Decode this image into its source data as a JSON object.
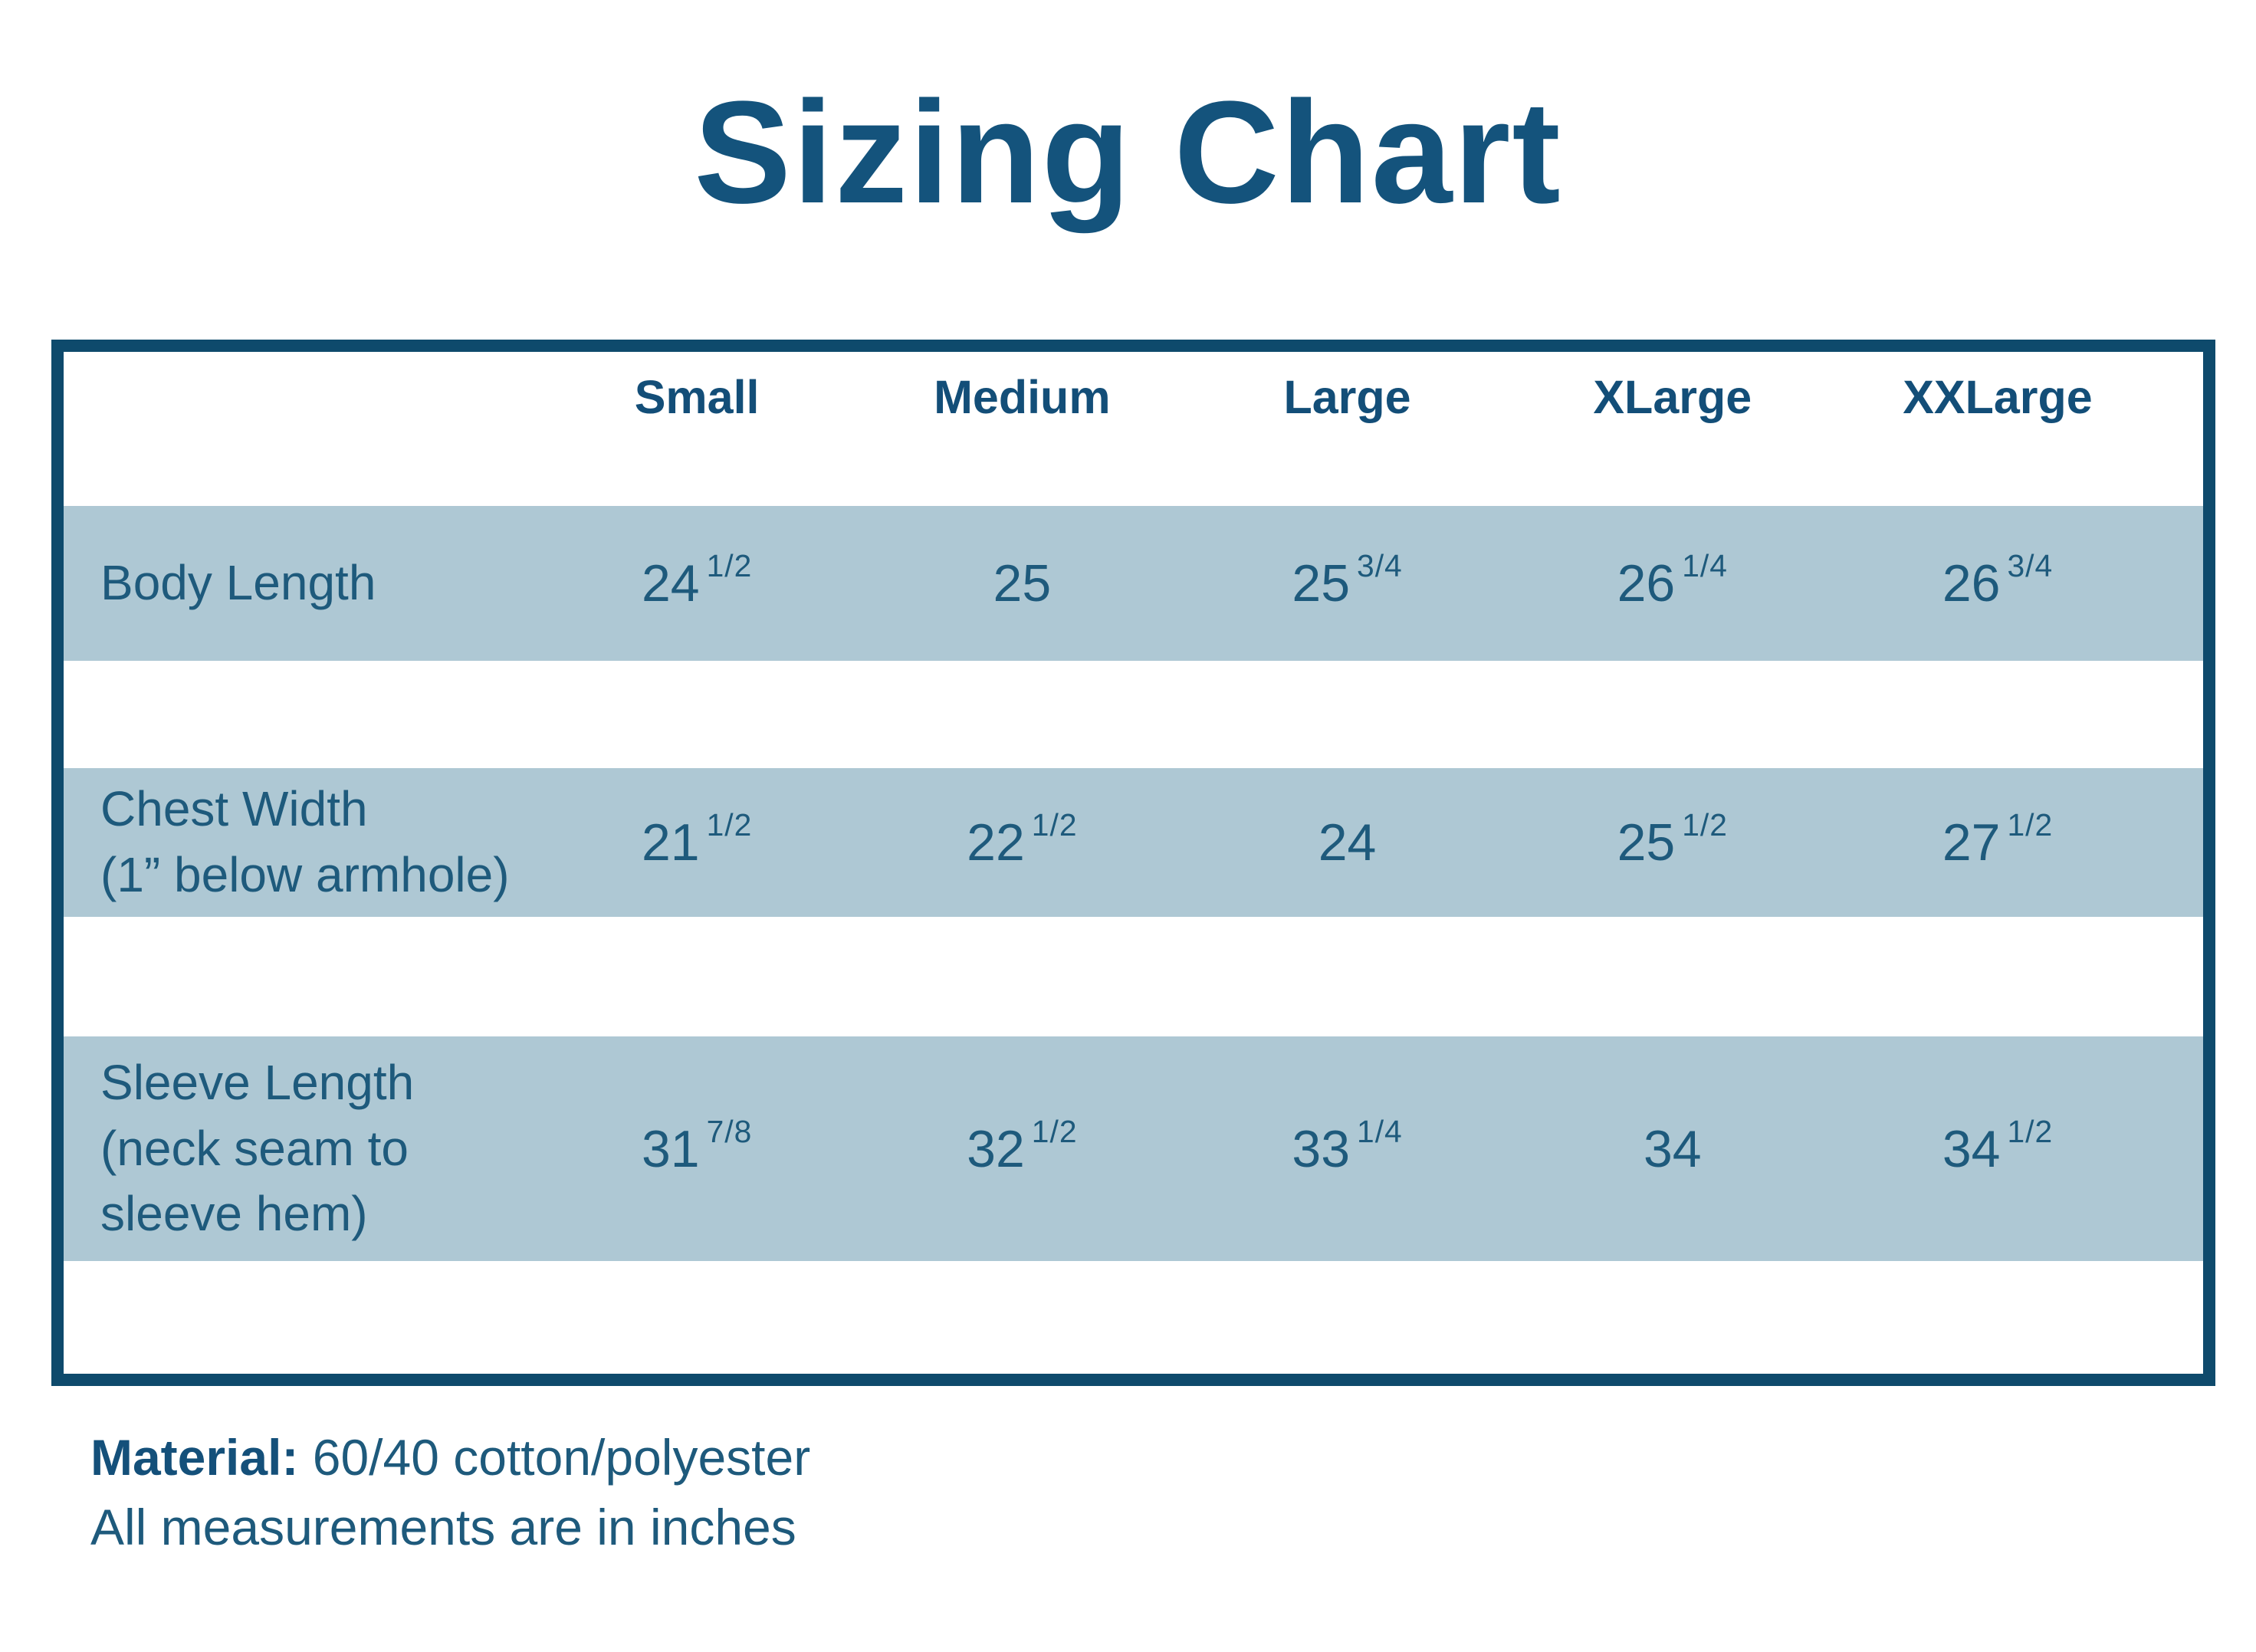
{
  "title": "Sizing Chart",
  "colors": {
    "accent_border": "#0e4a6c",
    "band": "#aec8d4",
    "text": "#1e5a7c",
    "heading_text": "#14537c"
  },
  "table": {
    "columns": [
      "Small",
      "Medium",
      "Large",
      "XLarge",
      "XXLarge"
    ],
    "rows": [
      {
        "label": "Body Length",
        "values": [
          {
            "w": "24",
            "f": "1/2"
          },
          {
            "w": "25",
            "f": ""
          },
          {
            "w": "25",
            "f": "3/4"
          },
          {
            "w": "26",
            "f": "1/4"
          },
          {
            "w": "26",
            "f": "3/4"
          }
        ]
      },
      {
        "label": "Chest Width\n(1” below armhole)",
        "values": [
          {
            "w": "21",
            "f": "1/2"
          },
          {
            "w": "22",
            "f": "1/2"
          },
          {
            "w": "24",
            "f": ""
          },
          {
            "w": "25",
            "f": "1/2"
          },
          {
            "w": "27",
            "f": "1/2"
          }
        ]
      },
      {
        "label": "Sleeve Length\n(neck seam to\nsleeve hem)",
        "values": [
          {
            "w": "31",
            "f": "7/8"
          },
          {
            "w": "32",
            "f": "1/2"
          },
          {
            "w": "33",
            "f": "1/4"
          },
          {
            "w": "34",
            "f": ""
          },
          {
            "w": "34",
            "f": "1/2"
          }
        ]
      }
    ]
  },
  "footer": {
    "material_label": "Material:",
    "material_value": " 60/40 cotton/polyester",
    "note": "All measurements are in inches"
  },
  "chart_data": {
    "type": "table",
    "title": "Sizing Chart",
    "columns": [
      "Small",
      "Medium",
      "Large",
      "XLarge",
      "XXLarge"
    ],
    "row_labels": [
      "Body Length",
      "Chest Width (1” below armhole)",
      "Sleeve Length (neck seam to sleeve hem)"
    ],
    "values_inches": [
      [
        24.5,
        25,
        25.75,
        26.25,
        26.75
      ],
      [
        21.5,
        22.5,
        24,
        25.5,
        27.5
      ],
      [
        31.875,
        32.5,
        33.25,
        34,
        34.5
      ]
    ],
    "notes": [
      "Material: 60/40 cotton/polyester",
      "All measurements are in inches"
    ]
  }
}
